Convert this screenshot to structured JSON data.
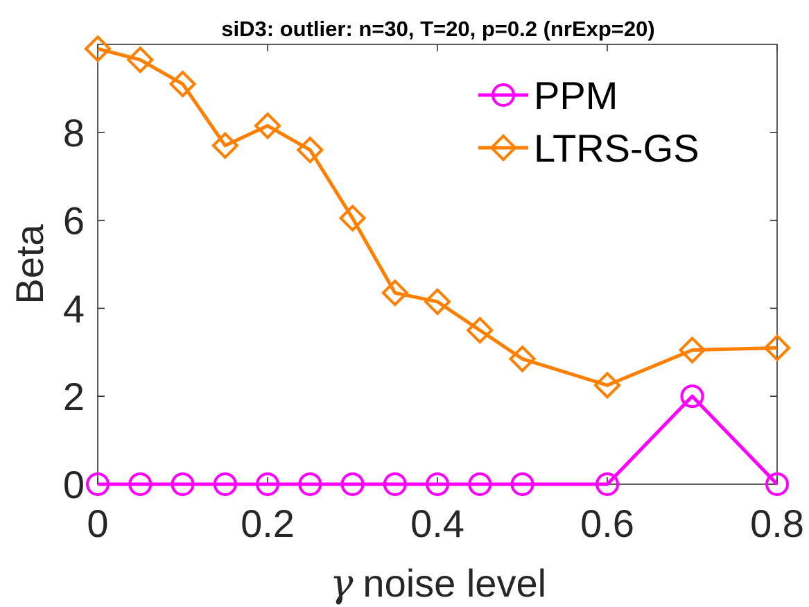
{
  "chart_data": {
    "type": "line",
    "title": "siD3: outlier: n=30, T=20, p=0.2 (nrExp=20)",
    "xlabel_symbol": "γ",
    "xlabel": "noise level",
    "ylabel": "Beta",
    "xlim": [
      0,
      0.8
    ],
    "ylim": [
      0,
      10
    ],
    "xticks": [
      0,
      0.2,
      0.4,
      0.6,
      0.8
    ],
    "xtick_labels": [
      "0",
      "0.2",
      "0.4",
      "0.6",
      "0.8"
    ],
    "yticks": [
      0,
      2,
      4,
      6,
      8
    ],
    "ytick_labels": [
      "0",
      "2",
      "4",
      "6",
      "8"
    ],
    "grid": false,
    "legend_position": "top-right",
    "x": [
      0,
      0.05,
      0.1,
      0.15,
      0.2,
      0.25,
      0.3,
      0.35,
      0.4,
      0.45,
      0.5,
      0.6,
      0.7,
      0.8
    ],
    "series": [
      {
        "name": "PPM",
        "color": "#ff00ff",
        "marker": "circle",
        "values": [
          0,
          0,
          0,
          0,
          0,
          0,
          0,
          0,
          0,
          0,
          0,
          0,
          2.0,
          0
        ]
      },
      {
        "name": "LTRS-GS",
        "color": "#ff8000",
        "marker": "diamond",
        "values": [
          9.9,
          9.65,
          9.1,
          7.7,
          8.15,
          7.6,
          6.05,
          4.35,
          4.15,
          3.5,
          2.85,
          2.25,
          3.05,
          3.1
        ]
      }
    ]
  }
}
